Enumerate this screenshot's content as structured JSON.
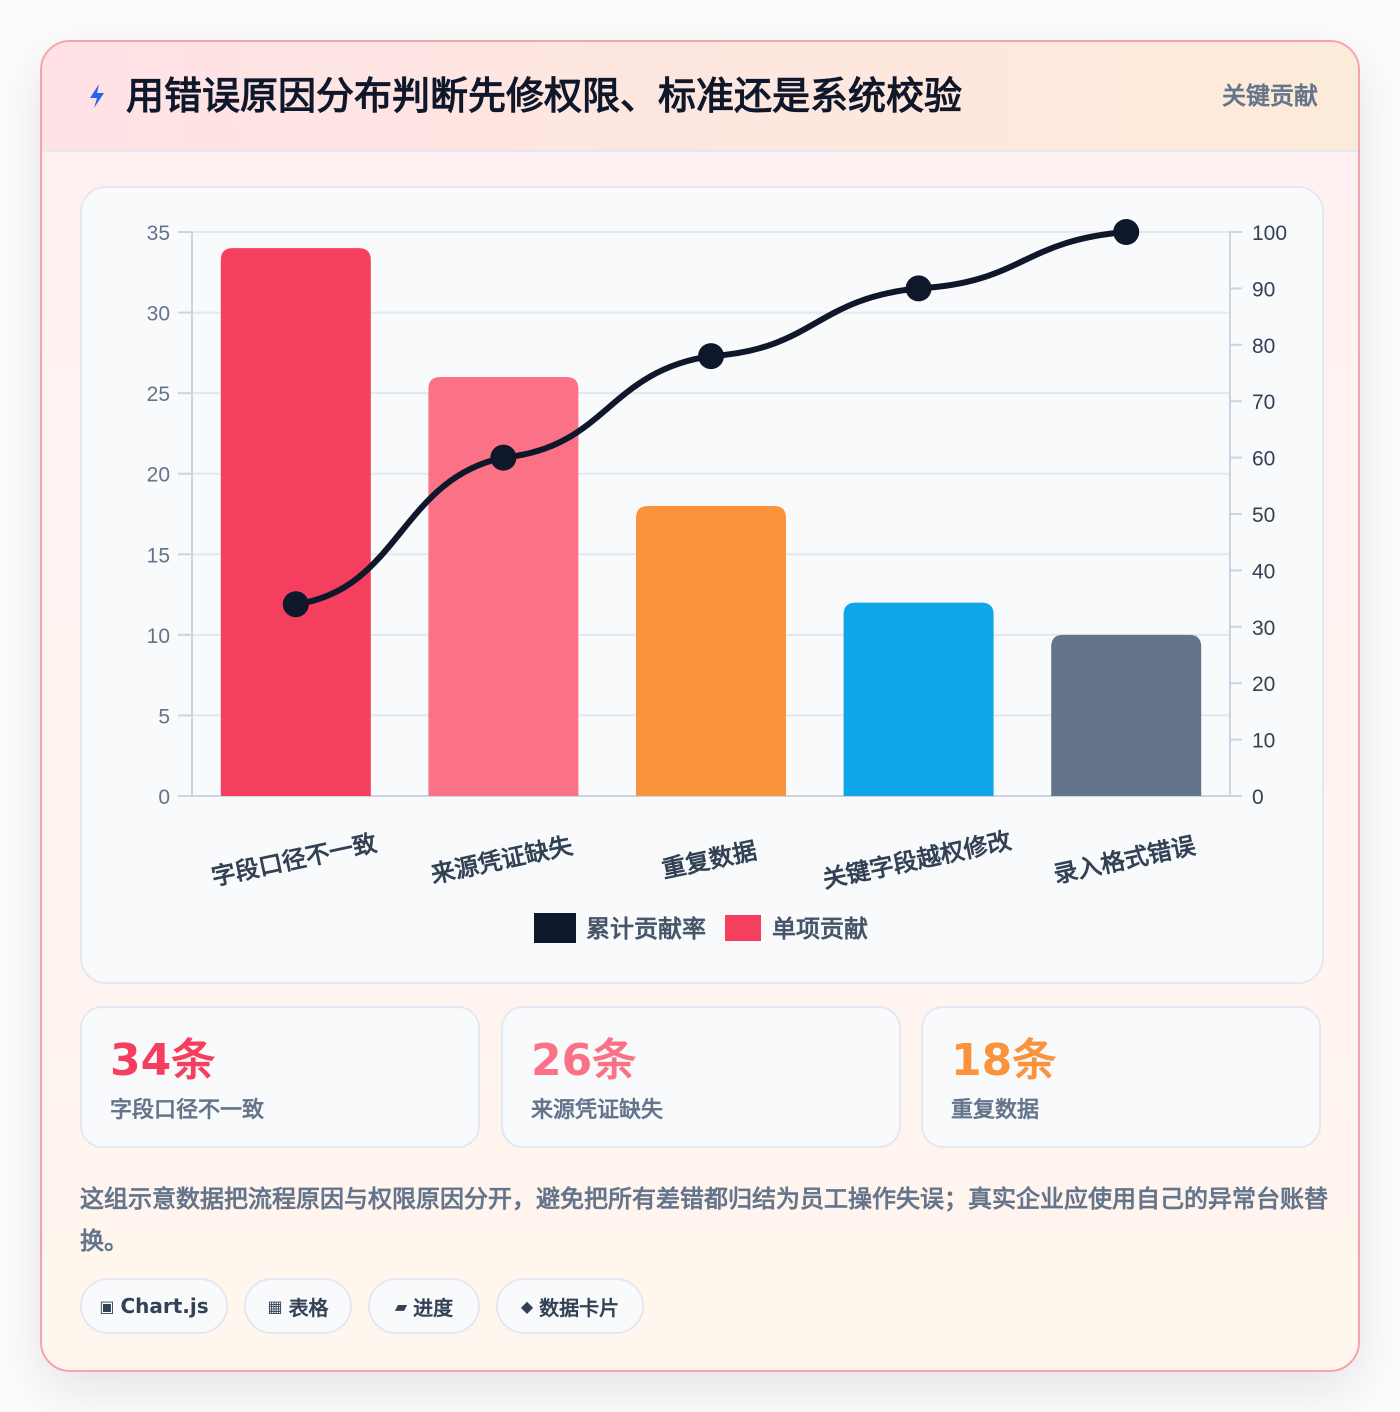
{
  "header": {
    "icon": "lightning-icon",
    "title": "用错误原因分布判断先修权限、标准还是系统校验",
    "badge": "关键贡献"
  },
  "chart_data": {
    "type": "bar",
    "categories": [
      "字段口径不一致",
      "来源凭证缺失",
      "重复数据",
      "关键字段越权修改",
      "录入格式错误"
    ],
    "series": [
      {
        "name": "单项贡献",
        "type": "bar",
        "axis": "left",
        "values": [
          34,
          26,
          18,
          12,
          10
        ],
        "colors": [
          "#f43f5e",
          "#fb7185",
          "#fb923c",
          "#0ea5e9",
          "#64748b"
        ]
      },
      {
        "name": "累计贡献率",
        "type": "line",
        "axis": "right",
        "values": [
          34,
          60,
          78,
          90,
          100
        ],
        "color": "#0f172a"
      }
    ],
    "y_left": {
      "ylim": [
        0,
        35
      ],
      "ticks": [
        0,
        5,
        10,
        15,
        20,
        25,
        30,
        35
      ]
    },
    "y_right": {
      "ylim": [
        0,
        100
      ],
      "ticks": [
        0,
        10,
        20,
        30,
        40,
        50,
        60,
        70,
        80,
        90,
        100
      ]
    },
    "legend": {
      "placement": "bottom",
      "order": [
        "累计贡献率",
        "单项贡献"
      ]
    },
    "grid": true
  },
  "stats": [
    {
      "value": "34条",
      "label": "字段口径不一致",
      "color": "#f43f5e"
    },
    {
      "value": "26条",
      "label": "来源凭证缺失",
      "color": "#fb7185"
    },
    {
      "value": "18条",
      "label": "重复数据",
      "color": "#fb923c"
    }
  ],
  "note": "这组示意数据把流程原因与权限原因分开，避免把所有差错都归结为员工操作失误；真实企业应使用自己的异常台账替换。",
  "tags": [
    {
      "icon": "▣",
      "label": "Chart.js"
    },
    {
      "icon": "▦",
      "label": "表格"
    },
    {
      "icon": "▰",
      "label": "进度"
    },
    {
      "icon": "◆",
      "label": "数据卡片"
    }
  ]
}
